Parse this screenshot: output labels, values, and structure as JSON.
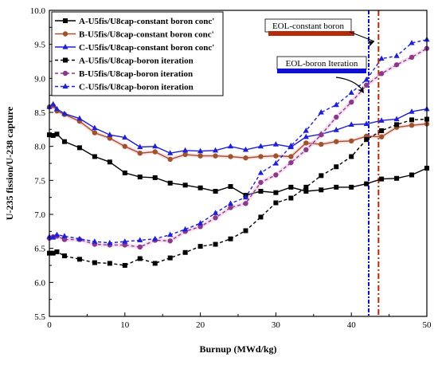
{
  "chart_data": {
    "type": "line",
    "title": "",
    "xlabel": "Burnup (MWd/kg)",
    "ylabel": "U-235 fission/U-238 capture",
    "xlim": [
      0,
      50
    ],
    "ylim": [
      5.5,
      10.0
    ],
    "xticks": [
      0,
      10,
      20,
      30,
      40,
      50
    ],
    "yticks": [
      5.5,
      6.0,
      6.5,
      7.0,
      7.5,
      8.0,
      8.5,
      9.0,
      9.5,
      10.0
    ],
    "xtick_labels": [
      "0",
      "10",
      "20",
      "30",
      "40",
      "50"
    ],
    "ytick_labels": [
      "5.5",
      "6.0",
      "6.5",
      "7.0",
      "7.5",
      "8.0",
      "8.5",
      "9.0",
      "9.5",
      "10.0"
    ],
    "grid": false,
    "legend_position": "top-left",
    "series": [
      {
        "name": "A-U5fis/U8cap-constant boron conc'",
        "color": "#000000",
        "dash": "solid",
        "marker": "square",
        "x": [
          0,
          0.5,
          1,
          2,
          4,
          6,
          8,
          10,
          12,
          14,
          16,
          18,
          20,
          22,
          24,
          26,
          28,
          30,
          32,
          34,
          36,
          38,
          40,
          42,
          44,
          46,
          48,
          50
        ],
        "y": [
          8.17,
          8.16,
          8.18,
          8.07,
          7.98,
          7.85,
          7.77,
          7.61,
          7.55,
          7.54,
          7.46,
          7.43,
          7.39,
          7.34,
          7.41,
          7.28,
          7.34,
          7.32,
          7.4,
          7.34,
          7.36,
          7.4,
          7.4,
          7.45,
          7.52,
          7.53,
          7.58,
          7.68
        ]
      },
      {
        "name": "B-U5fis/U8cap-constant boron conc'",
        "color": "#a0522d",
        "dash": "solid",
        "marker": "circle",
        "x": [
          0,
          0.5,
          1,
          2,
          4,
          6,
          8,
          10,
          12,
          14,
          16,
          18,
          20,
          22,
          24,
          26,
          28,
          30,
          32,
          34,
          36,
          38,
          40,
          42,
          44,
          46,
          48,
          50
        ],
        "y": [
          8.58,
          8.6,
          8.52,
          8.47,
          8.37,
          8.2,
          8.12,
          8.0,
          7.9,
          7.92,
          7.81,
          7.88,
          7.86,
          7.86,
          7.85,
          7.83,
          7.85,
          7.86,
          7.85,
          8.05,
          8.03,
          8.07,
          8.08,
          8.15,
          8.14,
          8.28,
          8.31,
          8.33
        ]
      },
      {
        "name": "C-U5fis/U8cap-constant boron conc'",
        "color": "#1f1fd6",
        "dash": "solid",
        "marker": "triangle",
        "x": [
          0,
          0.5,
          1,
          2,
          4,
          6,
          8,
          10,
          12,
          14,
          16,
          18,
          20,
          22,
          24,
          26,
          28,
          30,
          32,
          34,
          36,
          38,
          40,
          42,
          44,
          46,
          48,
          50
        ],
        "y": [
          8.58,
          8.62,
          8.55,
          8.48,
          8.41,
          8.27,
          8.17,
          8.13,
          7.99,
          8.0,
          7.9,
          7.94,
          7.93,
          7.94,
          8.0,
          7.95,
          8.0,
          8.03,
          7.99,
          8.14,
          8.18,
          8.24,
          8.32,
          8.33,
          8.38,
          8.4,
          8.51,
          8.55
        ]
      },
      {
        "name": "A-U5fis/U8cap-boron iteration",
        "color": "#000000",
        "dash": "dashed",
        "marker": "square",
        "x": [
          0,
          0.5,
          1,
          2,
          4,
          6,
          8,
          10,
          12,
          14,
          16,
          18,
          20,
          22,
          24,
          26,
          28,
          30,
          32,
          34,
          36,
          38,
          40,
          42,
          44,
          46,
          48,
          50
        ],
        "y": [
          6.43,
          6.43,
          6.45,
          6.39,
          6.34,
          6.29,
          6.28,
          6.25,
          6.35,
          6.28,
          6.36,
          6.44,
          6.53,
          6.56,
          6.64,
          6.76,
          6.96,
          7.17,
          7.24,
          7.4,
          7.57,
          7.7,
          7.85,
          8.1,
          8.23,
          8.32,
          8.39,
          8.4
        ]
      },
      {
        "name": "B-U5fis/U8cap-boron iteration",
        "color": "#8b3a8b",
        "dash": "dashed",
        "marker": "circle",
        "x": [
          0,
          0.5,
          1,
          2,
          4,
          6,
          8,
          10,
          12,
          14,
          16,
          18,
          20,
          22,
          24,
          26,
          28,
          30,
          32,
          34,
          36,
          38,
          40,
          42,
          44,
          46,
          48,
          50
        ],
        "y": [
          6.65,
          6.67,
          6.68,
          6.63,
          6.63,
          6.56,
          6.55,
          6.55,
          6.52,
          6.62,
          6.61,
          6.75,
          6.82,
          6.95,
          7.1,
          7.16,
          7.47,
          7.58,
          7.76,
          7.95,
          8.17,
          8.43,
          8.65,
          8.9,
          9.07,
          9.2,
          9.31,
          9.44
        ]
      },
      {
        "name": "C-U5fis/U8cap-boron iteration",
        "color": "#1f1fd6",
        "dash": "dashed",
        "marker": "triangle",
        "x": [
          0,
          0.5,
          1,
          2,
          4,
          6,
          8,
          10,
          12,
          14,
          16,
          18,
          20,
          22,
          24,
          26,
          28,
          30,
          32,
          34,
          36,
          38,
          40,
          42,
          44,
          46,
          48,
          50
        ],
        "y": [
          6.67,
          6.66,
          6.7,
          6.68,
          6.64,
          6.6,
          6.58,
          6.6,
          6.62,
          6.64,
          6.7,
          6.78,
          6.87,
          7.02,
          7.16,
          7.25,
          7.61,
          7.75,
          8.01,
          8.23,
          8.5,
          8.61,
          8.79,
          8.98,
          9.29,
          9.33,
          9.52,
          9.57
        ]
      }
    ],
    "annotations": [
      {
        "label": "EOL-constant boron",
        "color": "#b52a0a",
        "x": 43.6
      },
      {
        "label": "EOL-boron Iteration",
        "color": "#1010d0",
        "x": 42.3
      }
    ]
  }
}
